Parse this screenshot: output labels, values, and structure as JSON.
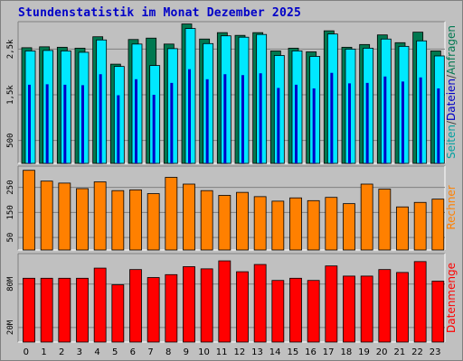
{
  "title": "Stundenstatistik im Monat Dezember 2025",
  "colors": {
    "background": "#c0c0c0",
    "title": "#0000c8",
    "anfragen": "#007850",
    "dateien": "#00e8ff",
    "seiten": "#0000c8",
    "rechner": "#ff8000",
    "datenmenge": "#ff0000",
    "grid": "#808080"
  },
  "chart_data": [
    {
      "type": "bar",
      "title": "Stundenstatistik im Monat Dezember 2025",
      "legend": {
        "placement": "right",
        "parts": [
          {
            "text": "Seiten",
            "color": "#00a0a0"
          },
          {
            "text": "/",
            "color": "#404040"
          },
          {
            "text": "Dateien",
            "color": "#0000c8"
          },
          {
            "text": "/",
            "color": "#404040"
          },
          {
            "text": "Anfragen",
            "color": "#007850"
          }
        ]
      },
      "categories": [
        "0",
        "1",
        "2",
        "3",
        "4",
        "5",
        "6",
        "7",
        "8",
        "9",
        "10",
        "11",
        "12",
        "13",
        "14",
        "15",
        "16",
        "17",
        "18",
        "19",
        "20",
        "21",
        "22",
        "23"
      ],
      "ylim": [
        0,
        3100
      ],
      "yticks": [
        500,
        1500,
        2500
      ],
      "ytick_labels": [
        "500",
        "1,5k",
        "2,5k"
      ],
      "grid": true,
      "series": [
        {
          "name": "Anfragen",
          "color": "#007850",
          "values": [
            2530,
            2550,
            2540,
            2520,
            2770,
            2170,
            2710,
            2740,
            2610,
            3050,
            2720,
            2860,
            2800,
            2860,
            2460,
            2520,
            2440,
            2900,
            2540,
            2600,
            2810,
            2640,
            2870,
            2460
          ]
        },
        {
          "name": "Dateien",
          "color": "#00e8ff",
          "values": [
            2460,
            2470,
            2460,
            2430,
            2700,
            2120,
            2610,
            2140,
            2510,
            2950,
            2620,
            2790,
            2760,
            2820,
            2360,
            2460,
            2340,
            2830,
            2500,
            2520,
            2720,
            2560,
            2680,
            2350
          ]
        },
        {
          "name": "Seiten",
          "color": "#0000c8",
          "values": [
            1720,
            1730,
            1720,
            1710,
            1950,
            1490,
            1840,
            1500,
            1760,
            2060,
            1840,
            1950,
            1930,
            1970,
            1650,
            1720,
            1640,
            1980,
            1750,
            1760,
            1900,
            1790,
            1880,
            1640
          ]
        }
      ]
    },
    {
      "type": "bar",
      "legend": {
        "placement": "right",
        "parts": [
          {
            "text": "Rechner",
            "color": "#ff8000"
          }
        ]
      },
      "categories": [
        "0",
        "1",
        "2",
        "3",
        "4",
        "5",
        "6",
        "7",
        "8",
        "9",
        "10",
        "11",
        "12",
        "13",
        "14",
        "15",
        "16",
        "17",
        "18",
        "19",
        "20",
        "21",
        "22",
        "23"
      ],
      "ylim": [
        0,
        335
      ],
      "yticks": [
        50,
        150,
        250
      ],
      "ytick_labels": [
        "50",
        "150",
        "250"
      ],
      "grid": true,
      "series": [
        {
          "name": "Rechner",
          "color": "#ff8000",
          "values": [
            318,
            275,
            267,
            245,
            272,
            237,
            240,
            225,
            290,
            263,
            237,
            218,
            230,
            213,
            195,
            208,
            197,
            210,
            185,
            263,
            243,
            172,
            190,
            203
          ]
        }
      ]
    },
    {
      "type": "bar",
      "legend": {
        "placement": "right",
        "parts": [
          {
            "text": "Datenmenge",
            "color": "#ff0000"
          }
        ]
      },
      "categories": [
        "0",
        "1",
        "2",
        "3",
        "4",
        "5",
        "6",
        "7",
        "8",
        "9",
        "10",
        "11",
        "12",
        "13",
        "14",
        "15",
        "16",
        "17",
        "18",
        "19",
        "20",
        "21",
        "22",
        "23"
      ],
      "ylim": [
        0,
        122
      ],
      "yticks": [
        20,
        80
      ],
      "ytick_labels": [
        "20M",
        "80M"
      ],
      "grid": true,
      "series": [
        {
          "name": "Datenmenge",
          "color": "#ff0000",
          "values": [
            88,
            88,
            88,
            88,
            102,
            79,
            100,
            89,
            93,
            104,
            101,
            112,
            97,
            107,
            85,
            88,
            85,
            105,
            91,
            91,
            100,
            96,
            111,
            84
          ]
        }
      ]
    }
  ]
}
